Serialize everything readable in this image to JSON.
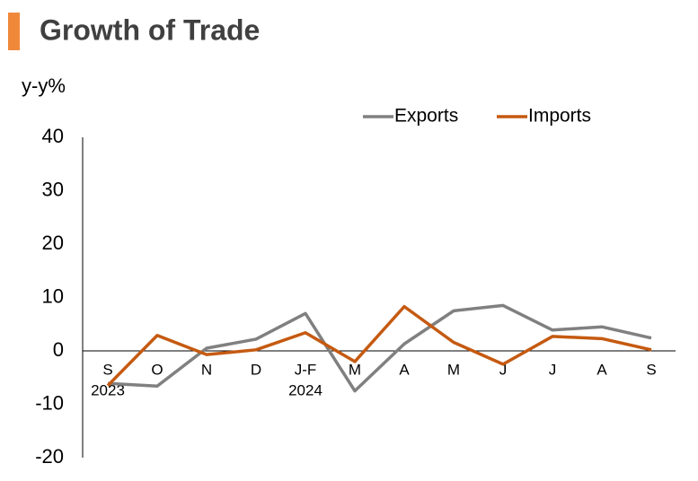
{
  "chart_data": {
    "type": "line",
    "title": "Growth of Trade",
    "y_label": "y-y%",
    "categories": [
      "S",
      "O",
      "N",
      "D",
      "J-F",
      "M",
      "A",
      "M",
      "J",
      "J",
      "A",
      "S"
    ],
    "category_years": [
      "2023",
      null,
      null,
      null,
      "2024",
      null,
      null,
      null,
      null,
      null,
      null,
      null
    ],
    "series": [
      {
        "name": "Exports",
        "color": "#808080",
        "values": [
          -6.1,
          -6.6,
          0.5,
          2.2,
          7.0,
          -7.5,
          1.3,
          7.5,
          8.5,
          3.9,
          4.5,
          2.4
        ]
      },
      {
        "name": "Imports",
        "color": "#c55a11",
        "values": [
          -6.5,
          2.9,
          -0.7,
          0.2,
          3.4,
          -2.0,
          8.3,
          1.6,
          -2.5,
          2.7,
          2.3,
          0.2
        ]
      }
    ],
    "ylim": [
      -20,
      40
    ],
    "yticks": [
      -20,
      -10,
      0,
      10,
      20,
      30,
      40
    ]
  }
}
